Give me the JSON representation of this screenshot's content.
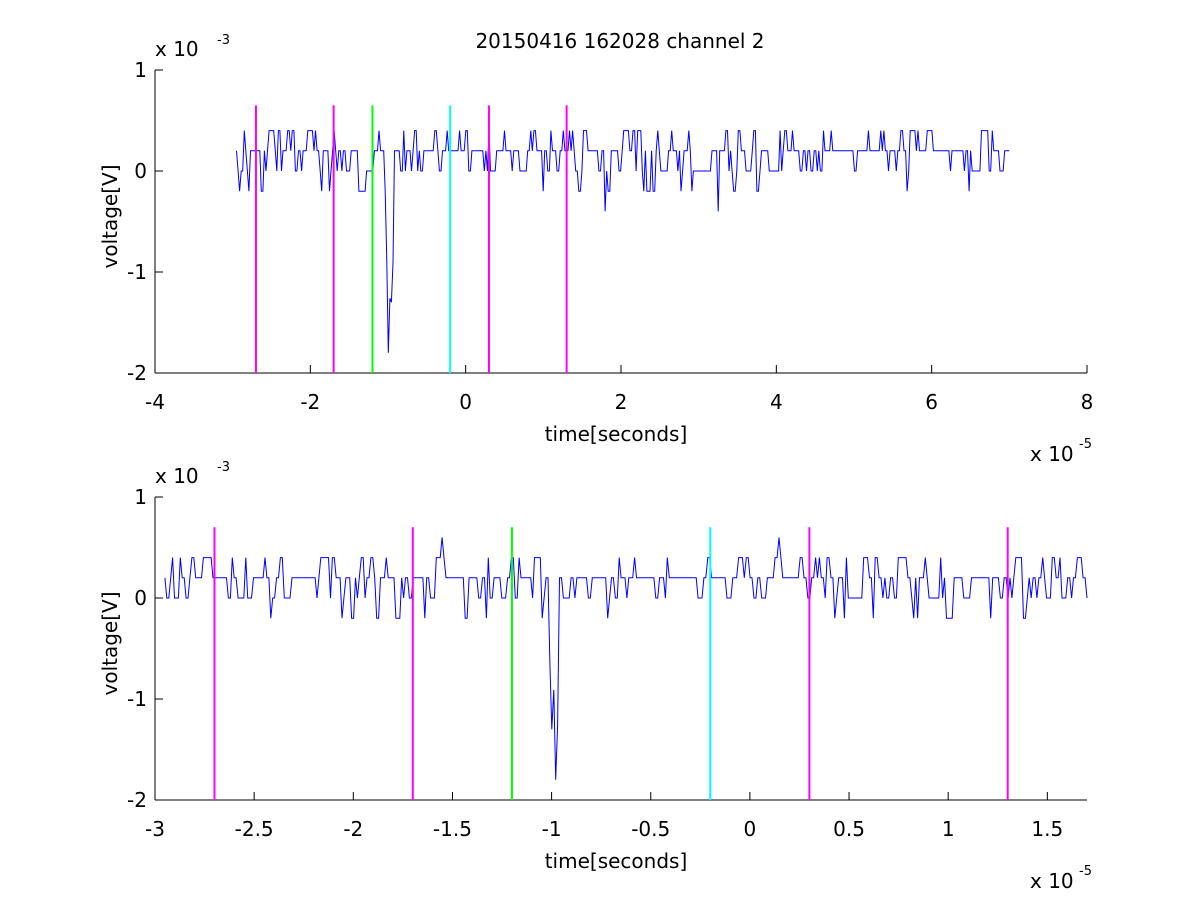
{
  "figure_title": "20150416 162028 channel 2",
  "chart_data": [
    {
      "type": "line",
      "title": "20150416 162028 channel 2",
      "xlabel": "time[seconds]",
      "ylabel": "voltage[V]",
      "x_exponent_label": "x 10",
      "x_exponent": "-5",
      "y_exponent_label": "x 10",
      "y_exponent": "-3",
      "xlim": [
        -4,
        8
      ],
      "ylim": [
        -2,
        1
      ],
      "xticks": [
        -4,
        -2,
        0,
        2,
        4,
        6,
        8
      ],
      "xtick_labels": [
        "-4",
        "-2",
        "0",
        "2",
        "4",
        "6",
        "8"
      ],
      "yticks": [
        -2,
        -1,
        0,
        1
      ],
      "ytick_labels": [
        "-2",
        "-1",
        "0",
        "1"
      ],
      "grid": false,
      "signal": {
        "color": "#0000ff",
        "x_range": [
          -2.95,
          7.0
        ],
        "noise_levels": [
          0.0,
          0.2,
          0.4,
          0.2,
          0.0,
          0.2
        ],
        "spikes": [
          {
            "x": -1.0,
            "y": -1.8
          },
          {
            "x": 1.8,
            "y": -0.4
          },
          {
            "x": 3.25,
            "y": -0.4
          },
          {
            "x": -0.95,
            "y": -1.3
          }
        ]
      },
      "markers": [
        {
          "x": -2.7,
          "color": "#ff00ff"
        },
        {
          "x": -1.7,
          "color": "#ff00ff"
        },
        {
          "x": -1.2,
          "color": "#00ff00"
        },
        {
          "x": -0.2,
          "color": "#00ffff"
        },
        {
          "x": 0.3,
          "color": "#ff00ff"
        },
        {
          "x": 1.3,
          "color": "#ff00ff"
        }
      ],
      "marker_y_range": [
        -2,
        0.65
      ]
    },
    {
      "type": "line",
      "title": "",
      "xlabel": "time[seconds]",
      "ylabel": "voltage[V]",
      "x_exponent_label": "x 10",
      "x_exponent": "-5",
      "y_exponent_label": "x 10",
      "y_exponent": "-3",
      "xlim": [
        -3.0,
        1.7
      ],
      "ylim": [
        -2,
        1
      ],
      "xticks": [
        -3,
        -2.5,
        -2,
        -1.5,
        -1,
        -0.5,
        0,
        0.5,
        1,
        1.5
      ],
      "xtick_labels": [
        "-3",
        "-2.5",
        "-2",
        "-1.5",
        "-1",
        "-0.5",
        "0",
        "0.5",
        "1",
        "1.5"
      ],
      "yticks": [
        -2,
        -1,
        0,
        1
      ],
      "ytick_labels": [
        "-2",
        "-1",
        "0",
        "1"
      ],
      "grid": false,
      "signal": {
        "color": "#0000ff",
        "x_range": [
          -2.95,
          1.7
        ],
        "noise_levels": [
          0.0,
          0.2,
          0.4,
          0.2,
          0.0,
          0.2
        ],
        "spikes": [
          {
            "x": -0.98,
            "y": -1.8
          },
          {
            "x": -1.0,
            "y": -1.3
          },
          {
            "x": -1.55,
            "y": 0.6
          },
          {
            "x": 0.15,
            "y": 0.6
          }
        ]
      },
      "markers": [
        {
          "x": -2.7,
          "color": "#ff00ff"
        },
        {
          "x": -1.7,
          "color": "#ff00ff"
        },
        {
          "x": -1.2,
          "color": "#00ff00"
        },
        {
          "x": -0.2,
          "color": "#00ffff"
        },
        {
          "x": 0.3,
          "color": "#ff00ff"
        },
        {
          "x": 1.3,
          "color": "#ff00ff"
        }
      ],
      "marker_y_range": [
        -2,
        0.7
      ]
    }
  ]
}
